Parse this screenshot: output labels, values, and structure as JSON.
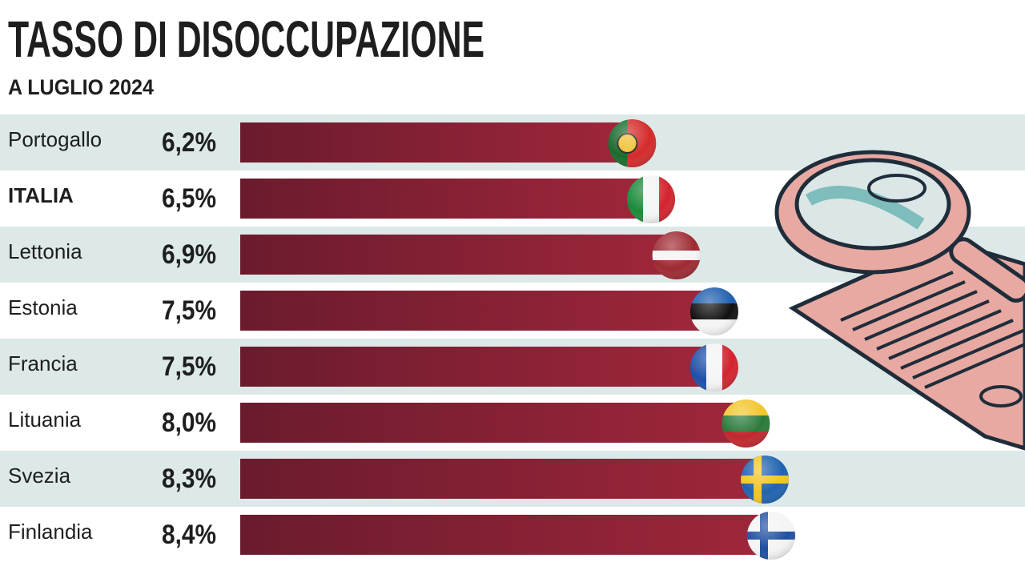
{
  "chart_data": {
    "type": "bar",
    "orientation": "horizontal",
    "title": "TASSO DI DISOCCUPAZIONE",
    "subtitle": "A LUGLIO 2024",
    "categories": [
      "Portogallo",
      "ITALIA",
      "Lettonia",
      "Estonia",
      "Francia",
      "Lituania",
      "Svezia",
      "Finlandia"
    ],
    "values": [
      6.2,
      6.5,
      6.9,
      7.5,
      7.5,
      8.0,
      8.3,
      8.4
    ],
    "value_labels": [
      "6,2%",
      "6,5%",
      "6,9%",
      "7,5%",
      "7,5%",
      "8,0%",
      "8,3%",
      "8,4%"
    ],
    "color": "#8c2236"
  }
}
